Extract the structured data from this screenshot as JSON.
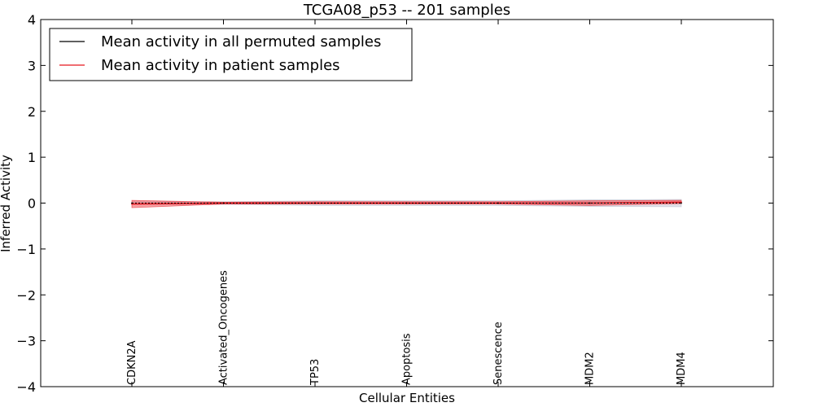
{
  "chart_data": {
    "type": "line",
    "title": "TCGA08_p53 -- 201 samples",
    "xlabel": "Cellular Entities",
    "ylabel": "Inferred Activity",
    "ylim": [
      -4,
      4
    ],
    "yticks": [
      4,
      3,
      2,
      1,
      0,
      -1,
      -2,
      -3,
      -4
    ],
    "ytick_labels": [
      "4",
      "3",
      "2",
      "1",
      "0",
      "−1",
      "−2",
      "−3",
      "−4"
    ],
    "categories": [
      "CDKN2A",
      "Activated_Oncogenes",
      "TP53",
      "Apoptosis",
      "Senescence",
      "MDM2",
      "MDM4"
    ],
    "legend_position": "upper-left",
    "series": [
      {
        "name": "Mean activity in all permuted samples",
        "color": "#000000",
        "values": [
          0.0,
          0.0,
          0.0,
          0.0,
          0.0,
          0.0,
          0.0
        ],
        "band_lower": [
          -0.03,
          -0.03,
          -0.05,
          -0.05,
          -0.05,
          -0.07,
          -0.08
        ],
        "band_upper": [
          0.03,
          0.03,
          0.05,
          0.05,
          0.05,
          0.07,
          0.08
        ],
        "band_color": "#b8b8c8"
      },
      {
        "name": "Mean activity in patient samples",
        "color": "#e8171e",
        "values": [
          -0.02,
          0.0,
          0.0,
          0.0,
          0.0,
          0.0,
          0.02
        ],
        "band_lower": [
          -0.1,
          -0.02,
          -0.02,
          -0.02,
          -0.02,
          -0.05,
          -0.01
        ],
        "band_upper": [
          0.06,
          0.02,
          0.03,
          0.03,
          0.03,
          0.05,
          0.06
        ],
        "band_color": "#e8171e"
      }
    ]
  }
}
